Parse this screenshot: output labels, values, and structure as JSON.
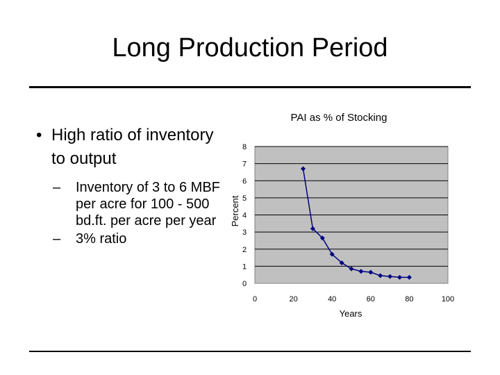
{
  "slide": {
    "title": "Long Production Period",
    "bullet": "High ratio of inventory to output",
    "subbullets": [
      "Inventory of 3 to 6 MBF per acre for 100 - 500 bd.ft. per acre per year",
      "3% ratio"
    ]
  },
  "chart_data": {
    "type": "scatter",
    "title": "PAI as % of Stocking",
    "xlabel": "Years",
    "ylabel": "Percent",
    "xlim": [
      0,
      100
    ],
    "ylim": [
      0,
      8
    ],
    "xticks": [
      0,
      20,
      40,
      60,
      80,
      100
    ],
    "yticks": [
      0,
      1,
      2,
      3,
      4,
      5,
      6,
      7,
      8
    ],
    "grid": "horizontal",
    "plot_background": "#c0c0c0",
    "series": [
      {
        "color": "#000080",
        "x": [
          25,
          30,
          35,
          40,
          45,
          50,
          55,
          60,
          65,
          70,
          75,
          80
        ],
        "y": [
          6.7,
          3.2,
          2.65,
          1.7,
          1.2,
          0.85,
          0.7,
          0.65,
          0.45,
          0.4,
          0.35,
          0.35
        ]
      }
    ]
  }
}
